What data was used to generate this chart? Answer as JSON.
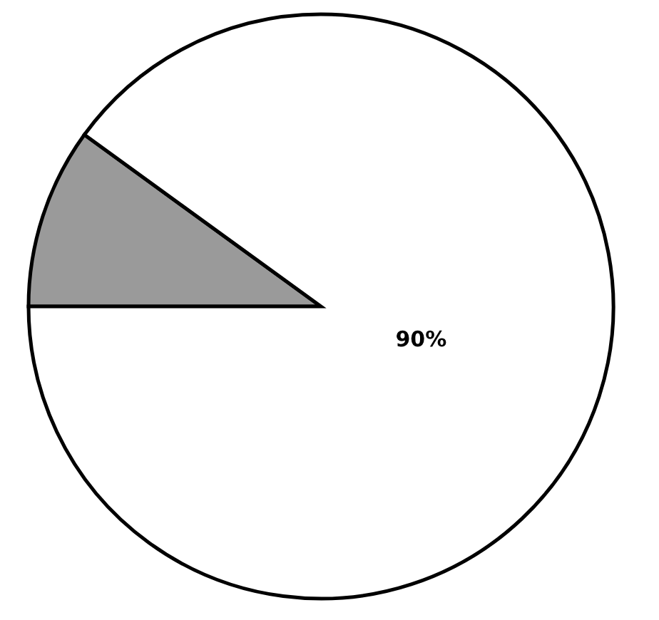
{
  "chart_data": {
    "type": "pie",
    "categories": [
      null,
      null
    ],
    "values": [
      10,
      90
    ],
    "colors": [
      "#9a9a9a",
      "#ffffff"
    ],
    "value_labels": [
      null,
      "90%"
    ],
    "legend": false
  }
}
